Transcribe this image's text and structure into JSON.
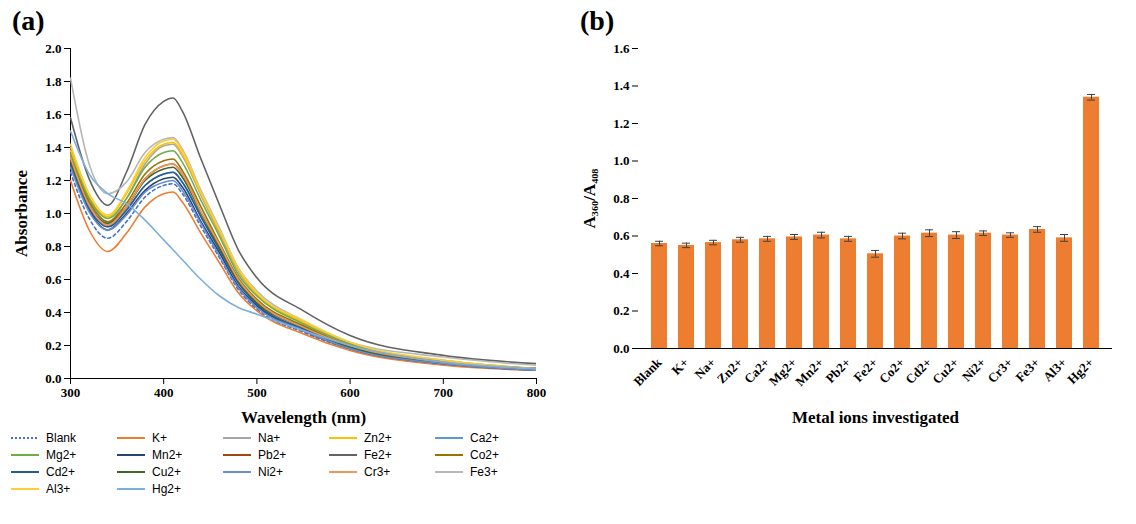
{
  "chart_data": [
    {
      "type": "line",
      "title": "(a)",
      "x_label": "Wavelength (nm)",
      "y_label": "Absorbance",
      "x": [
        300,
        320,
        340,
        360,
        380,
        400,
        410,
        420,
        440,
        460,
        480,
        500,
        550,
        600,
        700,
        800
      ],
      "xlim": [
        300,
        800
      ],
      "xticks": [
        300,
        400,
        500,
        600,
        700,
        800
      ],
      "ylim": [
        0,
        2
      ],
      "yticks": [
        {
          "value": 0,
          "label": "0.0"
        },
        0.2,
        0.4,
        0.6,
        0.8,
        {
          "value": 1,
          "label": "1.0"
        },
        1.2,
        1.4,
        1.6,
        1.8,
        {
          "value": 2,
          "label": "2.0"
        }
      ],
      "grid": false,
      "legend": "bottom",
      "series": [
        {
          "name": "Blank",
          "color": "#4472c4",
          "line_style": "dotted",
          "values": [
            1.25,
            0.97,
            0.85,
            0.95,
            1.1,
            1.17,
            1.18,
            1.12,
            0.92,
            0.73,
            0.54,
            0.42,
            0.28,
            0.18,
            0.09,
            0.05
          ]
        },
        {
          "name": "K+",
          "color": "#ed7d31",
          "line_style": "solid",
          "values": [
            1.2,
            0.9,
            0.77,
            0.88,
            1.04,
            1.12,
            1.13,
            1.07,
            0.88,
            0.7,
            0.52,
            0.41,
            0.27,
            0.17,
            0.08,
            0.05
          ]
        },
        {
          "name": "Na+",
          "color": "#a5a5a5",
          "line_style": "solid",
          "values": [
            1.4,
            1.09,
            0.95,
            1.09,
            1.3,
            1.41,
            1.42,
            1.35,
            1.11,
            0.88,
            0.65,
            0.51,
            0.34,
            0.21,
            0.11,
            0.06
          ]
        },
        {
          "name": "Zn2+",
          "color": "#ffc000",
          "line_style": "solid",
          "values": [
            1.38,
            1.1,
            0.98,
            1.12,
            1.32,
            1.42,
            1.43,
            1.36,
            1.12,
            0.89,
            0.66,
            0.51,
            0.34,
            0.21,
            0.11,
            0.06
          ]
        },
        {
          "name": "Ca2+",
          "color": "#5b9bd5",
          "line_style": "solid",
          "values": [
            1.35,
            1.05,
            0.92,
            1.02,
            1.17,
            1.24,
            1.25,
            1.19,
            0.98,
            0.78,
            0.58,
            0.45,
            0.3,
            0.19,
            0.09,
            0.06
          ]
        },
        {
          "name": "Mg2+",
          "color": "#70ad47",
          "line_style": "solid",
          "values": [
            1.36,
            1.09,
            0.97,
            1.09,
            1.28,
            1.37,
            1.38,
            1.31,
            1.08,
            0.86,
            0.63,
            0.5,
            0.33,
            0.21,
            0.1,
            0.06
          ]
        },
        {
          "name": "Mn2+",
          "color": "#264478",
          "line_style": "solid",
          "values": [
            1.3,
            1.02,
            0.9,
            1.0,
            1.14,
            1.21,
            1.22,
            1.16,
            0.95,
            0.76,
            0.56,
            0.44,
            0.29,
            0.18,
            0.09,
            0.05
          ]
        },
        {
          "name": "Pb2+",
          "color": "#9e480e",
          "line_style": "solid",
          "values": [
            1.33,
            1.05,
            0.93,
            1.04,
            1.21,
            1.29,
            1.3,
            1.24,
            1.01,
            0.81,
            0.6,
            0.47,
            0.31,
            0.2,
            0.1,
            0.06
          ]
        },
        {
          "name": "Fe2+",
          "color": "#636363",
          "line_style": "solid",
          "values": [
            1.58,
            1.21,
            1.05,
            1.25,
            1.54,
            1.68,
            1.7,
            1.62,
            1.33,
            1.05,
            0.78,
            0.61,
            0.41,
            0.26,
            0.14,
            0.09
          ]
        },
        {
          "name": "Co2+",
          "color": "#997300",
          "line_style": "solid",
          "values": [
            1.34,
            1.07,
            0.95,
            1.06,
            1.24,
            1.32,
            1.33,
            1.26,
            1.04,
            0.82,
            0.61,
            0.48,
            0.32,
            0.2,
            0.1,
            0.06
          ]
        },
        {
          "name": "Cd2+",
          "color": "#255e91",
          "line_style": "solid",
          "values": [
            1.3,
            1.03,
            0.92,
            1.02,
            1.17,
            1.24,
            1.25,
            1.19,
            0.98,
            0.78,
            0.58,
            0.45,
            0.3,
            0.19,
            0.09,
            0.06
          ]
        },
        {
          "name": "Cu2+",
          "color": "#43682b",
          "line_style": "solid",
          "values": [
            1.32,
            1.05,
            0.94,
            1.04,
            1.2,
            1.27,
            1.28,
            1.22,
            1.0,
            0.79,
            0.59,
            0.46,
            0.31,
            0.19,
            0.1,
            0.06
          ]
        },
        {
          "name": "Ni2+",
          "color": "#698ed0",
          "line_style": "solid",
          "values": [
            1.28,
            1.01,
            0.9,
            0.99,
            1.13,
            1.19,
            1.2,
            1.14,
            0.94,
            0.74,
            0.55,
            0.43,
            0.29,
            0.18,
            0.09,
            0.05
          ]
        },
        {
          "name": "Cr3+",
          "color": "#f1975a",
          "line_style": "solid",
          "values": [
            1.34,
            1.05,
            0.93,
            1.04,
            1.21,
            1.29,
            1.3,
            1.24,
            1.01,
            0.81,
            0.6,
            0.47,
            0.31,
            0.2,
            0.1,
            0.06
          ]
        },
        {
          "name": "Fe3+",
          "color": "#b7b7b7",
          "line_style": "solid",
          "values": [
            1.82,
            1.3,
            1.12,
            1.19,
            1.37,
            1.45,
            1.46,
            1.39,
            1.14,
            0.91,
            0.67,
            0.53,
            0.35,
            0.22,
            0.13,
            0.08
          ]
        },
        {
          "name": "Al3+",
          "color": "#ffcd33",
          "line_style": "solid",
          "values": [
            1.42,
            1.12,
            0.99,
            1.13,
            1.34,
            1.44,
            1.45,
            1.38,
            1.13,
            0.9,
            0.67,
            0.52,
            0.35,
            0.22,
            0.11,
            0.06
          ]
        },
        {
          "name": "Hg2+",
          "color": "#7cafdd",
          "line_style": "solid",
          "values": [
            1.5,
            1.24,
            1.12,
            1.06,
            0.96,
            0.84,
            0.78,
            0.72,
            0.6,
            0.5,
            0.43,
            0.39,
            0.29,
            0.2,
            0.1,
            0.06
          ]
        }
      ]
    },
    {
      "type": "bar",
      "title": "(b)",
      "x_label": "Metal ions investigated",
      "y_label": "A₃₆₀/A₄₀₈",
      "categories": [
        "Blank",
        "K+",
        "Na+",
        "Zn2+",
        "Ca2+",
        "Mg2+",
        "Mn2+",
        "Pb2+",
        "Fe2+",
        "Co2+",
        "Cd2+",
        "Cu2+",
        "Ni2+",
        "Cr3+",
        "Fe3+",
        "Al3+",
        "Hg2+"
      ],
      "values": [
        0.56,
        0.55,
        0.565,
        0.58,
        0.585,
        0.595,
        0.605,
        0.585,
        0.505,
        0.6,
        0.615,
        0.605,
        0.615,
        0.605,
        0.635,
        0.59,
        1.34
      ],
      "errors": [
        0.012,
        0.012,
        0.012,
        0.013,
        0.013,
        0.013,
        0.015,
        0.013,
        0.018,
        0.015,
        0.018,
        0.018,
        0.012,
        0.012,
        0.015,
        0.018,
        0.015
      ],
      "color": "#ed7d31",
      "grid": false,
      "ylim": [
        0,
        1.6
      ],
      "yticks": [
        {
          "value": 0,
          "label": "0.0"
        },
        0.2,
        0.4,
        0.6,
        0.8,
        {
          "value": 1,
          "label": "1.0"
        },
        1.2,
        1.4,
        1.6
      ]
    }
  ]
}
